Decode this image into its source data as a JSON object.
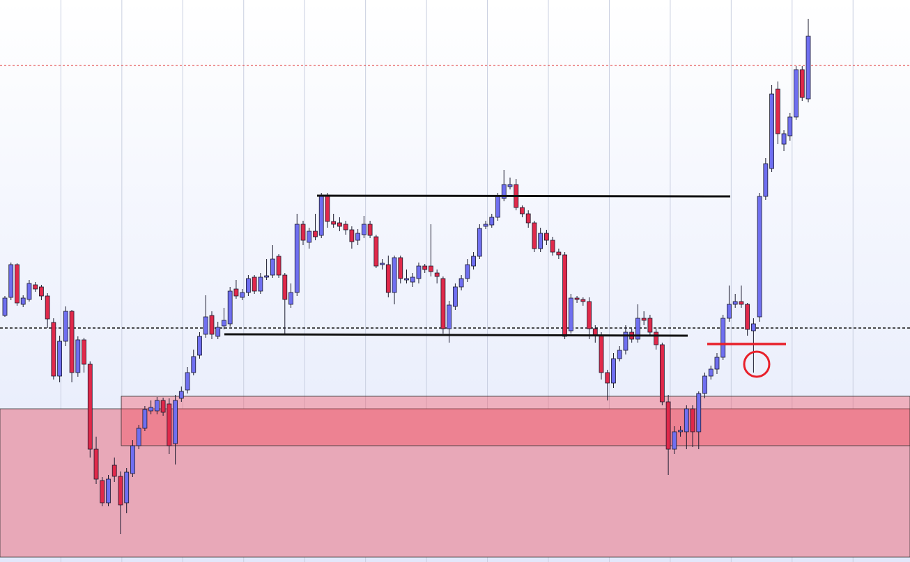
{
  "chart_data": {
    "type": "candlestick",
    "ylim": [
      0,
      807
    ],
    "up_color": "#6f6ff0",
    "down_color": "#e0294a",
    "outline_color": "#1a1a2e",
    "open": [
      354,
      380,
      427,
      370,
      377,
      398,
      395,
      382,
      344,
      267,
      317,
      360,
      272,
      319,
      284,
      162,
      117,
      85,
      139,
      123,
      85,
      127,
      167,
      192,
      217,
      217,
      232,
      227,
      170,
      235,
      247,
      272,
      297,
      327,
      354,
      324,
      339,
      342,
      392,
      380,
      387,
      409,
      389,
      409,
      412,
      439,
      412,
      370,
      387,
      485,
      459,
      475,
      469,
      527,
      489,
      487,
      485,
      477,
      462,
      470,
      485,
      467,
      427,
      427,
      387,
      437,
      405,
      402,
      407,
      425,
      425,
      415,
      407,
      335,
      367,
      395,
      407,
      425,
      439,
      482,
      484,
      495,
      522,
      539,
      542,
      509,
      500,
      487,
      450,
      472,
      462,
      445,
      441,
      332,
      379,
      377,
      374,
      335,
      325,
      272,
      257,
      292,
      304,
      330,
      320,
      350,
      350,
      330,
      312,
      230,
      162,
      187,
      187,
      220,
      187,
      242,
      267,
      277,
      294,
      350,
      370,
      374,
      370,
      332,
      352,
      525,
      565,
      679,
      600,
      612,
      639,
      707,
      665
    ],
    "high": [
      382,
      430,
      429,
      383,
      405,
      402,
      398,
      386,
      350,
      325,
      367,
      362,
      324,
      322,
      288,
      180,
      122,
      125,
      150,
      130,
      135,
      175,
      197,
      224,
      232,
      237,
      236,
      235,
      240,
      252,
      280,
      305,
      330,
      383,
      360,
      345,
      365,
      395,
      405,
      392,
      412,
      412,
      415,
      435,
      455,
      442,
      415,
      400,
      500,
      490,
      480,
      500,
      530,
      530,
      500,
      495,
      490,
      482,
      478,
      497,
      490,
      470,
      435,
      440,
      440,
      440,
      420,
      415,
      430,
      428,
      485,
      420,
      410,
      375,
      400,
      412,
      435,
      445,
      485,
      490,
      500,
      530,
      563,
      552,
      550,
      512,
      505,
      490,
      480,
      477,
      467,
      450,
      445,
      385,
      382,
      380,
      380,
      340,
      330,
      276,
      300,
      310,
      340,
      335,
      370,
      360,
      355,
      335,
      315,
      240,
      195,
      195,
      225,
      225,
      245,
      272,
      282,
      300,
      355,
      397,
      385,
      397,
      372,
      350,
      530,
      580,
      685,
      690,
      620,
      645,
      712,
      712,
      780
    ],
    "low": [
      352,
      376,
      368,
      366,
      374,
      388,
      376,
      336,
      262,
      258,
      310,
      258,
      266,
      272,
      150,
      112,
      80,
      80,
      115,
      40,
      70,
      122,
      162,
      188,
      212,
      212,
      210,
      155,
      140,
      230,
      242,
      268,
      292,
      322,
      320,
      320,
      334,
      338,
      378,
      376,
      382,
      385,
      385,
      405,
      408,
      408,
      327,
      365,
      382,
      455,
      450,
      462,
      465,
      480,
      480,
      475,
      470,
      450,
      455,
      465,
      465,
      422,
      420,
      380,
      370,
      400,
      400,
      395,
      400,
      415,
      410,
      400,
      328,
      315,
      362,
      390,
      402,
      420,
      435,
      478,
      480,
      490,
      518,
      535,
      505,
      495,
      480,
      445,
      445,
      455,
      440,
      435,
      320,
      328,
      372,
      368,
      320,
      315,
      262,
      232,
      250,
      288,
      298,
      315,
      315,
      340,
      325,
      305,
      225,
      125,
      155,
      180,
      162,
      165,
      162,
      235,
      262,
      270,
      290,
      345,
      365,
      365,
      325,
      272,
      345,
      520,
      560,
      600,
      590,
      605,
      635,
      662,
      660
    ],
    "close": [
      379,
      427,
      372,
      379,
      400,
      392,
      382,
      349,
      267,
      317,
      360,
      272,
      319,
      284,
      162,
      119,
      85,
      119,
      123,
      82,
      129,
      167,
      192,
      219,
      222,
      232,
      215,
      167,
      232,
      245,
      272,
      295,
      324,
      352,
      327,
      337,
      347,
      389,
      382,
      387,
      407,
      389,
      409,
      411,
      435,
      412,
      377,
      387,
      485,
      462,
      475,
      467,
      527,
      489,
      485,
      482,
      477,
      460,
      472,
      485,
      469,
      425,
      429,
      387,
      437,
      407,
      407,
      409,
      425,
      420,
      417,
      410,
      335,
      369,
      395,
      407,
      427,
      439,
      479,
      485,
      495,
      525,
      542,
      542,
      509,
      500,
      487,
      450,
      472,
      462,
      445,
      441,
      324,
      379,
      377,
      374,
      335,
      325,
      272,
      257,
      292,
      304,
      330,
      320,
      350,
      347,
      330,
      312,
      230,
      162,
      187,
      189,
      220,
      187,
      242,
      267,
      277,
      294,
      350,
      370,
      374,
      370,
      334,
      342,
      525,
      572,
      672,
      615,
      615,
      639,
      707,
      667,
      755
    ]
  }
}
